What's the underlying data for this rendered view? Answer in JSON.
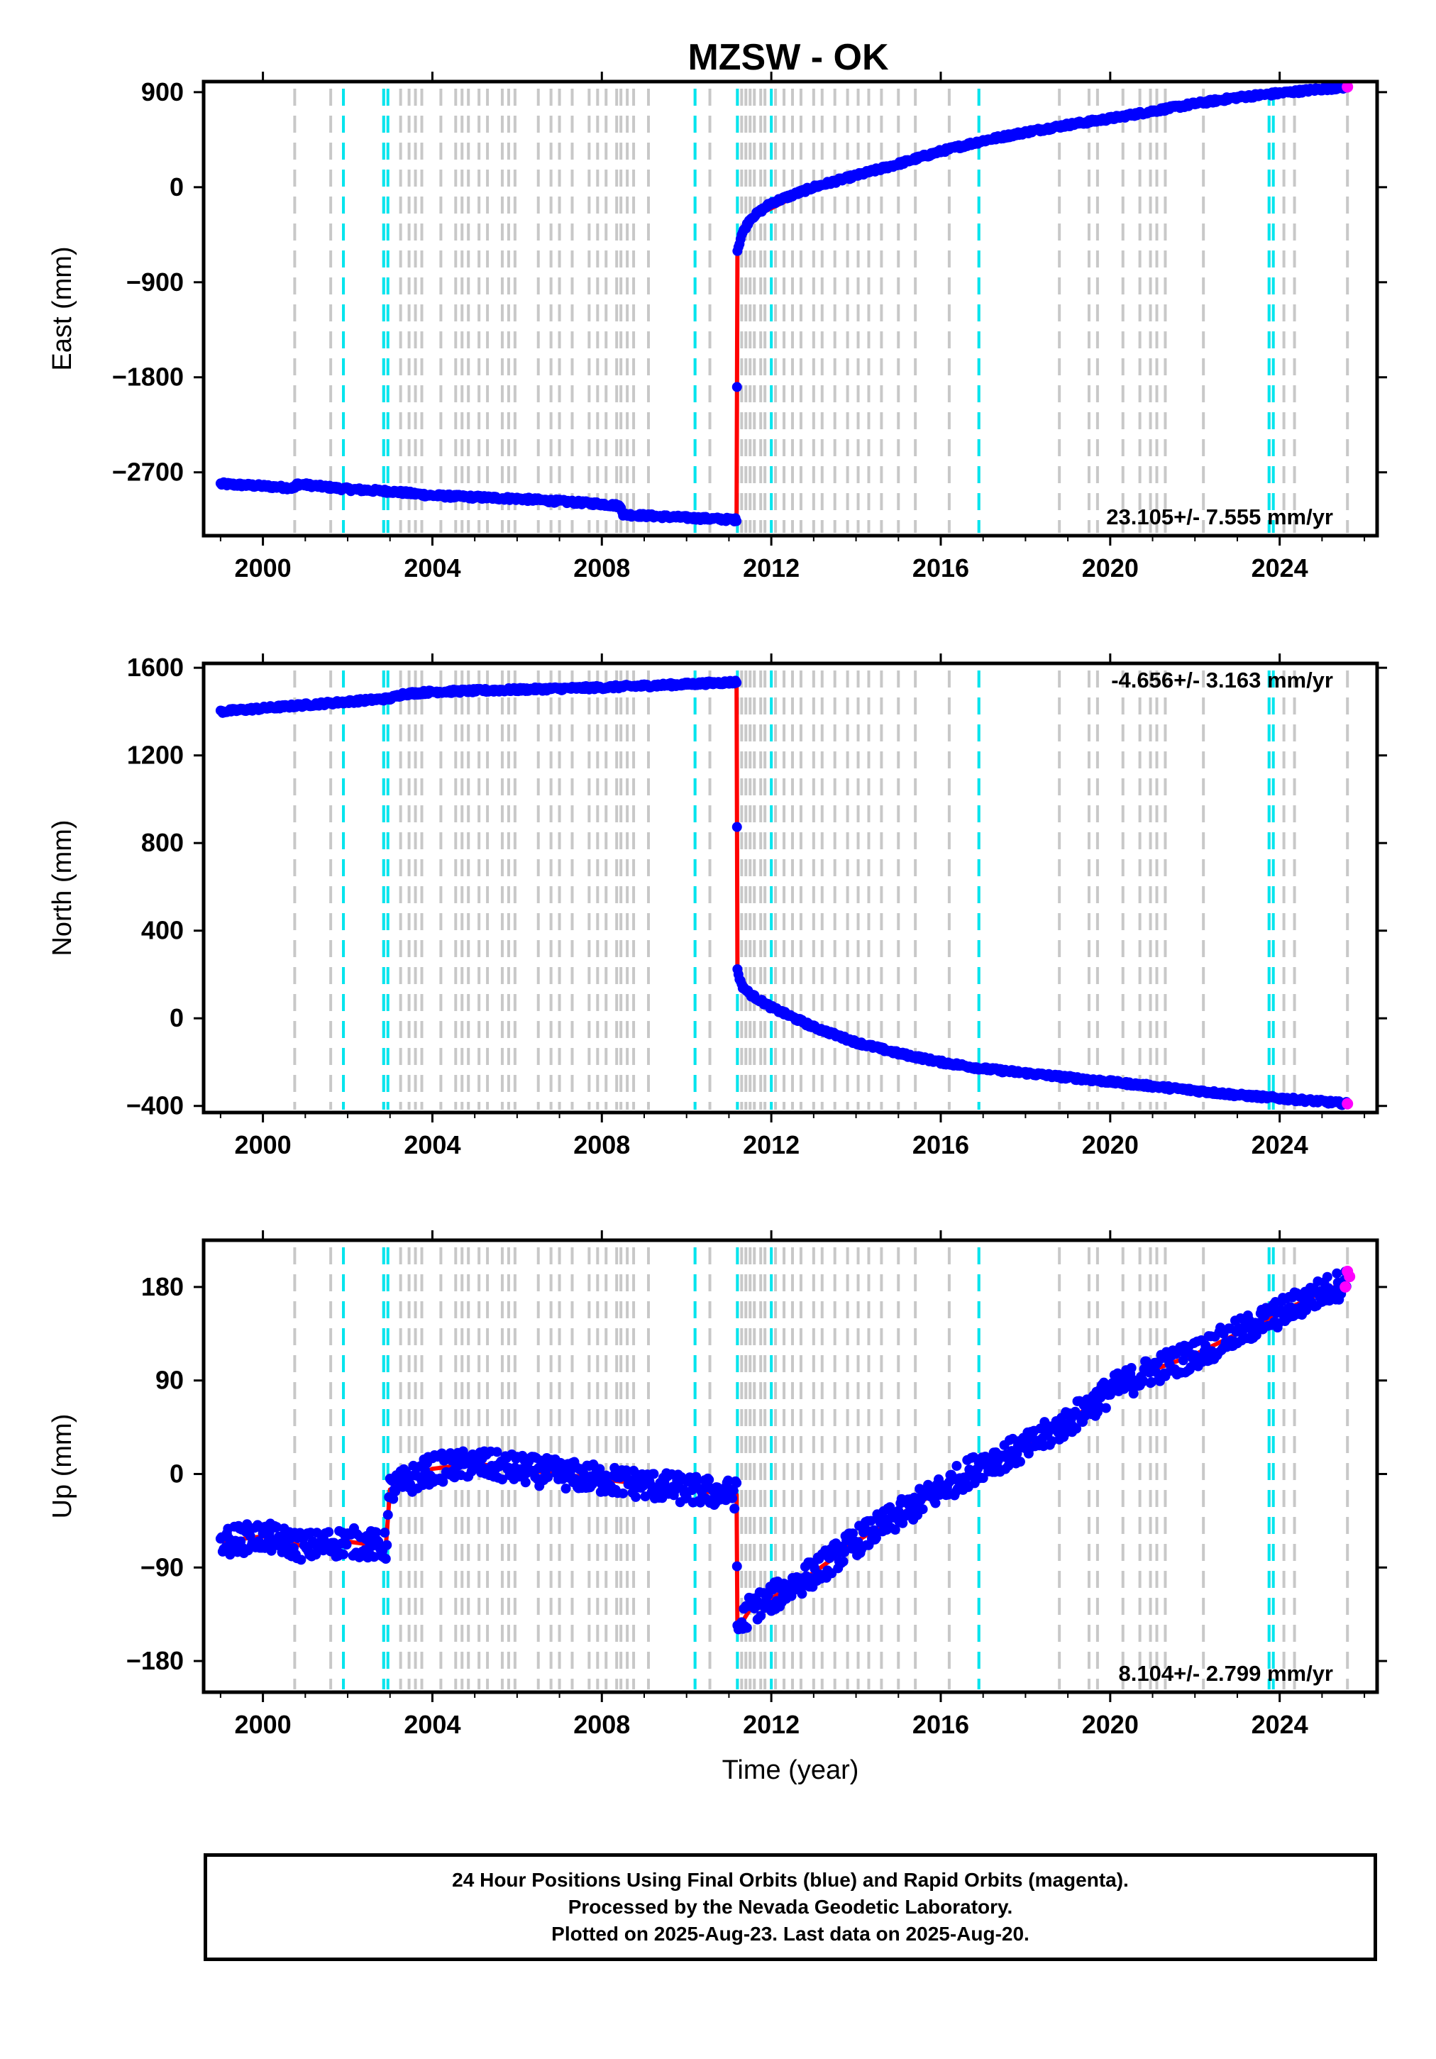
{
  "figure": {
    "title": "MZSW - OK",
    "footer_lines": [
      "24 Hour Positions Using Final Orbits (blue) and Rapid Orbits (magenta).",
      "Processed by the Nevada Geodetic Laboratory.",
      "Plotted on 2025-Aug-23. Last data on 2025-Aug-20."
    ],
    "colors": {
      "final_orbits": "#0000ff",
      "rapid_orbits": "#ff00ff",
      "model_fit": "#ff0000",
      "event_gray": "#c8c8c8",
      "event_cyan": "#00e5ee"
    }
  },
  "chart_data": [
    {
      "type": "scatter",
      "panel": "east",
      "ylabel": "East (mm)",
      "xlabel": "",
      "xlim": [
        1998.6,
        2026.3
      ],
      "ylim": [
        -3300,
        1000
      ],
      "xticks": [
        2000,
        2004,
        2008,
        2012,
        2016,
        2020,
        2024
      ],
      "yticks": [
        -2700,
        -1800,
        -900,
        0,
        900
      ],
      "ytick_labels": [
        "−2700",
        "−1800",
        "−900",
        "0",
        "900"
      ],
      "rate_label": "23.105+/- 7.555 mm/yr",
      "rate_position": "bottom-right",
      "series": [
        {
          "name": "Final Orbits",
          "color": "#0000ff",
          "x": [
            1999.0,
            2000.0,
            2000.75,
            2000.8,
            2002.0,
            2003.0,
            2004.0,
            2006.0,
            2008.0,
            2008.45,
            2008.5,
            2010.0,
            2011.18,
            2011.2,
            2011.3,
            2011.5,
            2012.0,
            2013.0,
            2014.0,
            2015.0,
            2016.0,
            2017.0,
            2018.0,
            2019.0,
            2020.0,
            2021.0,
            2022.0,
            2023.0,
            2024.0,
            2025.0,
            2025.6
          ],
          "y": [
            -2810,
            -2830,
            -2850,
            -2810,
            -2860,
            -2880,
            -2920,
            -2950,
            -3000,
            -3020,
            -3100,
            -3130,
            -3150,
            -600,
            -450,
            -300,
            -150,
            0,
            110,
            220,
            340,
            440,
            520,
            590,
            650,
            720,
            790,
            850,
            890,
            930,
            950
          ]
        },
        {
          "name": "Rapid Orbits",
          "color": "#ff00ff",
          "x": [
            2025.6
          ],
          "y": [
            950
          ]
        }
      ],
      "model": {
        "color": "#ff0000",
        "x": [
          1999.0,
          2000.75,
          2000.8,
          2003.0,
          2008.45,
          2008.5,
          2011.18,
          2011.2,
          2011.5,
          2013.0,
          2016.0,
          2020.0,
          2024.0,
          2025.6
        ],
        "y": [
          -2810,
          -2850,
          -2810,
          -2880,
          -3020,
          -3100,
          -3150,
          -600,
          -300,
          0,
          340,
          650,
          890,
          950
        ]
      },
      "grid": false
    },
    {
      "type": "scatter",
      "panel": "north",
      "ylabel": "North (mm)",
      "xlabel": "",
      "xlim": [
        1998.6,
        2026.3
      ],
      "ylim": [
        -430,
        1620
      ],
      "xticks": [
        2000,
        2004,
        2008,
        2012,
        2016,
        2020,
        2024
      ],
      "yticks": [
        -400,
        0,
        400,
        800,
        1200,
        1600
      ],
      "ytick_labels": [
        "−400",
        "0",
        "400",
        "800",
        "1200",
        "1600"
      ],
      "rate_label": "-4.656+/- 3.163 mm/yr",
      "rate_position": "top-right",
      "series": [
        {
          "name": "Final Orbits",
          "color": "#0000ff",
          "x": [
            1999.0,
            2000.0,
            2001.0,
            2003.0,
            2003.3,
            2004.0,
            2006.0,
            2008.0,
            2010.0,
            2011.18,
            2011.2,
            2011.3,
            2011.5,
            2012.0,
            2013.0,
            2014.0,
            2015.0,
            2016.0,
            2017.0,
            2018.0,
            2019.0,
            2020.0,
            2021.0,
            2022.0,
            2023.0,
            2024.0,
            2025.0,
            2025.6
          ],
          "y": [
            1400,
            1415,
            1430,
            1460,
            1480,
            1490,
            1500,
            1510,
            1525,
            1535,
            220,
            150,
            110,
            50,
            -40,
            -110,
            -160,
            -200,
            -230,
            -250,
            -270,
            -290,
            -310,
            -330,
            -350,
            -365,
            -380,
            -390
          ]
        },
        {
          "name": "Rapid Orbits",
          "color": "#ff00ff",
          "x": [
            2025.6
          ],
          "y": [
            -390
          ]
        }
      ],
      "model": {
        "color": "#ff0000",
        "x": [
          1999.0,
          2001.0,
          2003.0,
          2004.0,
          2008.0,
          2011.18,
          2011.2,
          2011.5,
          2012.0,
          2014.0,
          2016.0,
          2020.0,
          2024.0,
          2025.6
        ],
        "y": [
          1400,
          1430,
          1460,
          1490,
          1510,
          1535,
          220,
          110,
          50,
          -110,
          -200,
          -290,
          -365,
          -390
        ]
      },
      "grid": false
    },
    {
      "type": "scatter",
      "panel": "up",
      "ylabel": "Up (mm)",
      "xlabel": "Time (year)",
      "xlim": [
        1998.6,
        2026.3
      ],
      "ylim": [
        -210,
        225
      ],
      "xticks": [
        2000,
        2004,
        2008,
        2012,
        2016,
        2020,
        2024
      ],
      "yticks": [
        -180,
        -90,
        0,
        90,
        180
      ],
      "ytick_labels": [
        "−180",
        "−90",
        "0",
        "90",
        "180"
      ],
      "rate_label": "8.104+/- 2.799 mm/yr",
      "rate_position": "bottom-right",
      "series": [
        {
          "name": "Final Orbits",
          "color": "#0000ff",
          "x": [
            1999.0,
            2000.0,
            2001.0,
            2002.0,
            2002.9,
            2003.0,
            2004.0,
            2005.0,
            2006.0,
            2007.0,
            2008.0,
            2009.0,
            2010.0,
            2011.18,
            2011.2,
            2011.5,
            2012.0,
            2013.0,
            2014.0,
            2015.0,
            2016.0,
            2017.0,
            2018.0,
            2019.0,
            2020.0,
            2021.0,
            2022.0,
            2023.0,
            2024.0,
            2025.0,
            2025.6
          ],
          "y": [
            -65,
            -60,
            -70,
            -65,
            -70,
            -15,
            5,
            10,
            5,
            0,
            -5,
            -10,
            -15,
            -20,
            -150,
            -130,
            -120,
            -95,
            -65,
            -40,
            -15,
            10,
            25,
            50,
            80,
            100,
            115,
            135,
            155,
            175,
            185
          ]
        },
        {
          "name": "Rapid Orbits",
          "color": "#ff00ff",
          "x": [
            2025.55,
            2025.6,
            2025.65
          ],
          "y": [
            180,
            195,
            190
          ]
        }
      ],
      "model": {
        "color": "#ff0000",
        "x": [
          1999.0,
          2000.0,
          2001.0,
          2002.0,
          2002.9,
          2003.0,
          2004.0,
          2005.0,
          2006.0,
          2007.0,
          2008.0,
          2009.0,
          2010.0,
          2011.18,
          2011.2,
          2011.5,
          2012.0,
          2013.0,
          2014.0,
          2015.0,
          2016.0,
          2017.0,
          2018.0,
          2019.0,
          2020.0,
          2021.0,
          2022.0,
          2023.0,
          2024.0,
          2025.0,
          2025.6
        ],
        "y": [
          -65,
          -60,
          -70,
          -65,
          -70,
          -15,
          5,
          10,
          5,
          0,
          -5,
          -10,
          -15,
          -20,
          -150,
          -130,
          -120,
          -95,
          -65,
          -40,
          -15,
          10,
          25,
          50,
          80,
          100,
          115,
          135,
          155,
          175,
          185
        ]
      },
      "grid": false
    }
  ],
  "events": {
    "gray_x": [
      2000.75,
      2001.6,
      2001.9,
      2002.85,
      2003.25,
      2003.45,
      2003.6,
      2003.75,
      2004.2,
      2004.55,
      2004.7,
      2004.85,
      2005.1,
      2005.3,
      2005.65,
      2005.8,
      2005.95,
      2006.5,
      2006.8,
      2007.0,
      2007.3,
      2007.7,
      2007.9,
      2008.1,
      2008.35,
      2008.45,
      2008.6,
      2008.75,
      2009.1,
      2010.2,
      2010.55,
      2011.2,
      2011.3,
      2011.4,
      2011.5,
      2011.6,
      2011.75,
      2011.85,
      2012.1,
      2012.3,
      2012.5,
      2012.7,
      2013.0,
      2013.2,
      2013.5,
      2013.8,
      2014.05,
      2014.3,
      2014.6,
      2015.0,
      2015.4,
      2016.2,
      2016.9,
      2018.8,
      2019.5,
      2019.7,
      2020.3,
      2020.7,
      2020.95,
      2021.1,
      2021.3,
      2022.2,
      2023.75,
      2024.1,
      2024.35,
      2025.6
    ],
    "cyan_x": [
      2001.9,
      2002.85,
      2002.95,
      2010.2,
      2011.2,
      2012.0,
      2016.9,
      2023.75,
      2023.85
    ]
  }
}
